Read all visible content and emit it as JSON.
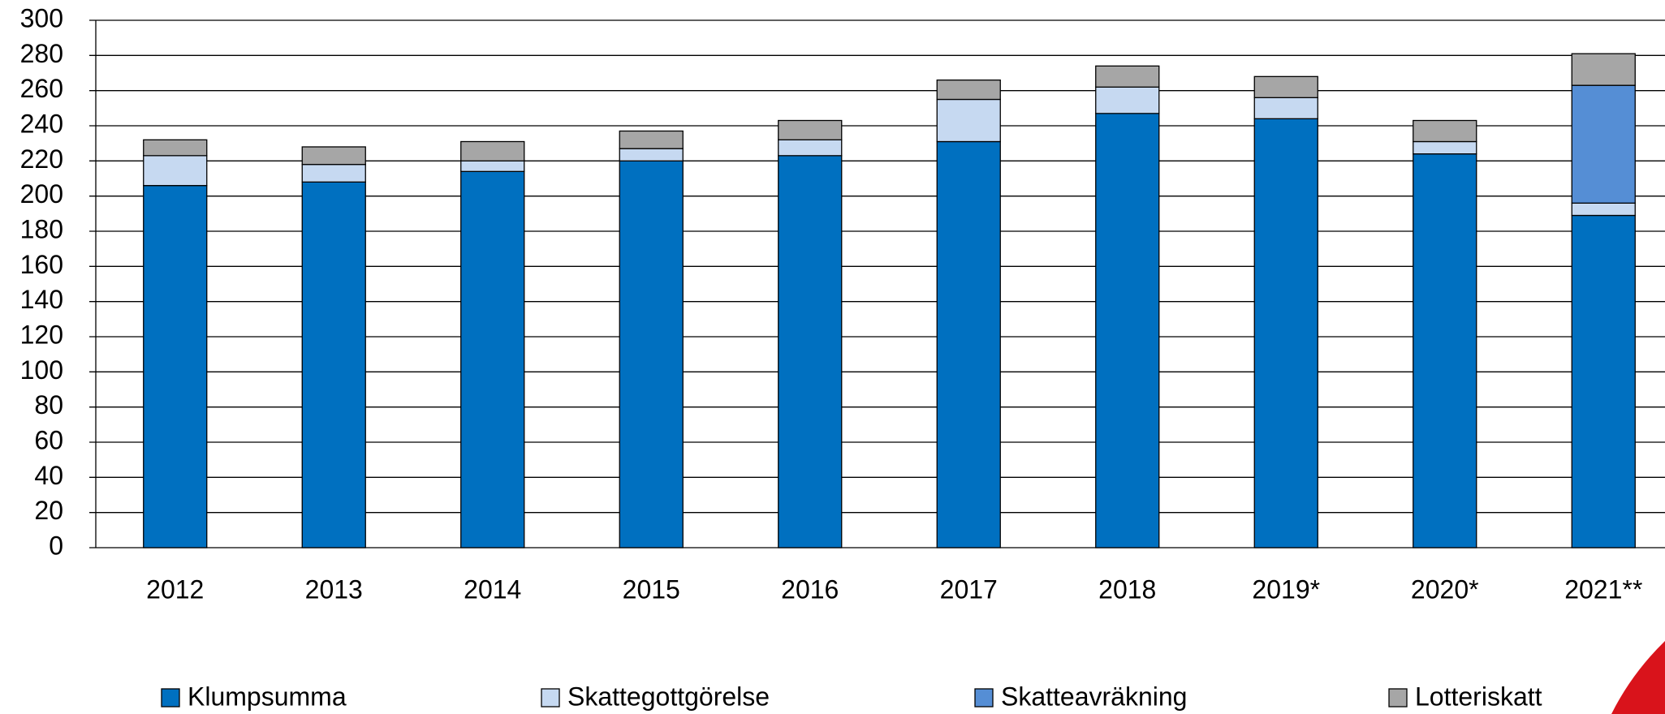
{
  "chart_data": {
    "type": "stacked_bar",
    "categories": [
      "2012",
      "2013",
      "2014",
      "2015",
      "2016",
      "2017",
      "2018",
      "2019*",
      "2020*",
      "2021**"
    ],
    "series": [
      {
        "name": "Klumpsumma",
        "color": "#0070c0",
        "values": [
          206,
          208,
          214,
          220,
          223,
          231,
          247,
          244,
          224,
          189
        ]
      },
      {
        "name": "Skattegottgörelse",
        "color": "#c6d9f1",
        "values": [
          17,
          10,
          6,
          7,
          9,
          24,
          15,
          12,
          7,
          7
        ]
      },
      {
        "name": "Skatteavräkning",
        "color": "#558ed5",
        "values": [
          0,
          0,
          0,
          0,
          0,
          0,
          0,
          0,
          0,
          67
        ]
      },
      {
        "name": "Lotteriskatt",
        "color": "#a6a6a6",
        "values": [
          9,
          10,
          11,
          10,
          11,
          11,
          12,
          12,
          12,
          18
        ]
      }
    ],
    "ylim": [
      0,
      300
    ],
    "yticks": [
      0,
      20,
      40,
      60,
      80,
      100,
      120,
      140,
      160,
      180,
      200,
      220,
      240,
      260,
      280,
      300
    ],
    "grid": true
  }
}
